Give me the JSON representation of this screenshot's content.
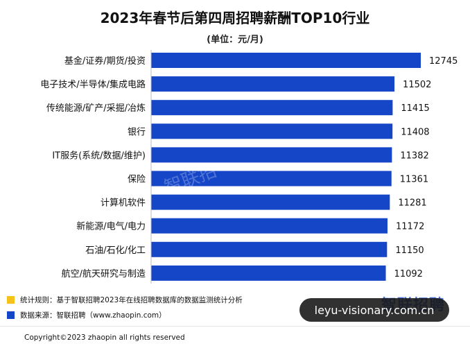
{
  "chart_data": {
    "type": "bar",
    "orientation": "horizontal",
    "title": "2023年春节后第四周招聘薪酬TOP10行业",
    "subtitle": "(单位：元/月)",
    "categories": [
      "基金/证券/期货/投资",
      "电子技术/半导体/集成电路",
      "传统能源/矿产/采掘/冶炼",
      "银行",
      "IT服务(系统/数据/维护)",
      "保险",
      "计算机软件",
      "新能源/电气/电力",
      "石油/石化/化工",
      "航空/航天研究与制造"
    ],
    "values": [
      12745,
      11502,
      11415,
      11408,
      11382,
      11361,
      11281,
      11172,
      11150,
      11092
    ],
    "bar_color": "#1646c8",
    "grid": false,
    "data_labels": true
  },
  "legend": [
    {
      "color": "#f5c21b",
      "text": "统计规则：基于智联招聘2023年在线招聘数据库的数据监测统计分析"
    },
    {
      "color": "#1646c8",
      "text": "数据来源：智联招聘（www.zhaopin.com）"
    }
  ],
  "footer": {
    "copyright": "Copyright©2023 zhaopin all rights reserved"
  },
  "watermark": {
    "text": "leyu-visionary.com.cn",
    "logo": "智联招聘",
    "faint": "智联招"
  }
}
